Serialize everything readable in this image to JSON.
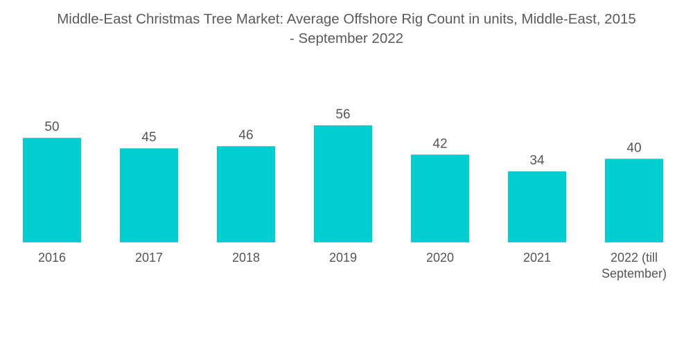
{
  "chart_data": {
    "type": "bar",
    "title_lines": [
      "Middle-East Christmas Tree Market: Average Offshore Rig Count in units, Middle-East, 2015",
      "- September 2022"
    ],
    "categories": [
      [
        "2016"
      ],
      [
        "2017"
      ],
      [
        "2018"
      ],
      [
        "2019"
      ],
      [
        "2020"
      ],
      [
        "2021"
      ],
      [
        "2022 (till",
        "September)"
      ]
    ],
    "values": [
      50,
      45,
      46,
      56,
      42,
      34,
      40
    ],
    "bar_color": "#00CED1",
    "ylim": [
      0,
      56
    ],
    "grid": false,
    "legend": "none"
  }
}
